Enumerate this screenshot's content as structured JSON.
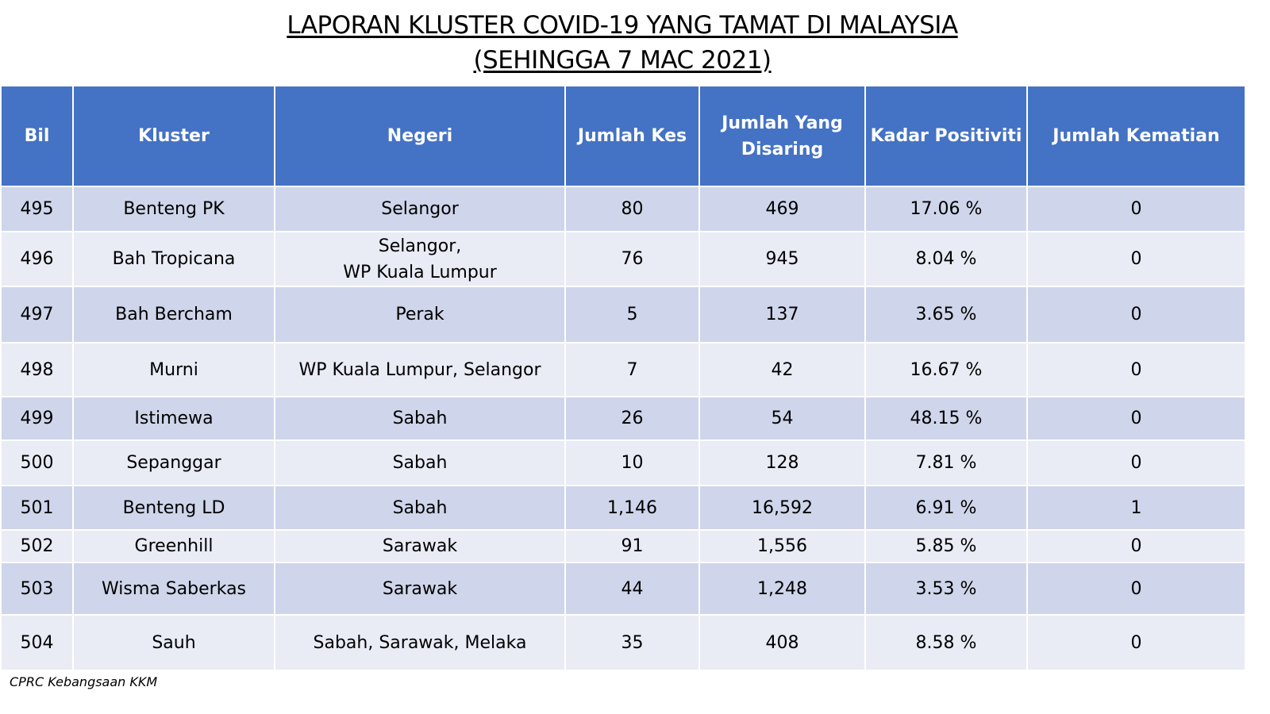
{
  "title": {
    "line1": "LAPORAN KLUSTER COVID-19 YANG TAMAT DI MALAYSIA",
    "line2": "(SEHINGGA 7 MAC 2021)"
  },
  "table": {
    "headers": {
      "bil": "Bil",
      "kluster": "Kluster",
      "negeri": "Negeri",
      "jumlah_kes": "Jumlah Kes",
      "jumlah_disaring_1": "Jumlah Yang",
      "jumlah_disaring_2": "Disaring",
      "kadar_positiviti": "Kadar Positiviti",
      "jumlah_kematian": "Jumlah Kematian"
    },
    "rows": [
      {
        "bil": "495",
        "kluster": "Benteng PK",
        "negeri": "Selangor",
        "negeri2": "",
        "kes": "80",
        "disaring": "469",
        "positiviti": "17.06 %",
        "kematian": "0"
      },
      {
        "bil": "496",
        "kluster": "Bah Tropicana",
        "negeri": "Selangor,",
        "negeri2": "WP Kuala Lumpur",
        "kes": "76",
        "disaring": "945",
        "positiviti": "8.04 %",
        "kematian": "0"
      },
      {
        "bil": "497",
        "kluster": "Bah Bercham",
        "negeri": "Perak",
        "negeri2": "",
        "kes": "5",
        "disaring": "137",
        "positiviti": "3.65 %",
        "kematian": "0"
      },
      {
        "bil": "498",
        "kluster": "Murni",
        "negeri": "WP Kuala Lumpur, Selangor",
        "negeri2": "",
        "kes": "7",
        "disaring": "42",
        "positiviti": "16.67 %",
        "kematian": "0"
      },
      {
        "bil": "499",
        "kluster": "Istimewa",
        "negeri": "Sabah",
        "negeri2": "",
        "kes": "26",
        "disaring": "54",
        "positiviti": "48.15 %",
        "kematian": "0"
      },
      {
        "bil": "500",
        "kluster": "Sepanggar",
        "negeri": "Sabah",
        "negeri2": "",
        "kes": "10",
        "disaring": "128",
        "positiviti": "7.81 %",
        "kematian": "0"
      },
      {
        "bil": "501",
        "kluster": "Benteng LD",
        "negeri": "Sabah",
        "negeri2": "",
        "kes": "1,146",
        "disaring": "16,592",
        "positiviti": "6.91 %",
        "kematian": "1"
      },
      {
        "bil": "502",
        "kluster": "Greenhill",
        "negeri": "Sarawak",
        "negeri2": "",
        "kes": "91",
        "disaring": "1,556",
        "positiviti": "5.85 %",
        "kematian": "0"
      },
      {
        "bil": "503",
        "kluster": "Wisma Saberkas",
        "negeri": "Sarawak",
        "negeri2": "",
        "kes": "44",
        "disaring": "1,248",
        "positiviti": "3.53 %",
        "kematian": "0"
      },
      {
        "bil": "504",
        "kluster": "Sauh",
        "negeri": "Sabah, Sarawak, Melaka",
        "negeri2": "",
        "kes": "35",
        "disaring": "408",
        "positiviti": "8.58 %",
        "kematian": "0"
      }
    ]
  },
  "footer": {
    "source": "CPRC Kebangsaan KKM"
  },
  "colors": {
    "header_bg": "#4472c4",
    "row_dark": "#cfd5ea",
    "row_light": "#e9ebf5"
  }
}
